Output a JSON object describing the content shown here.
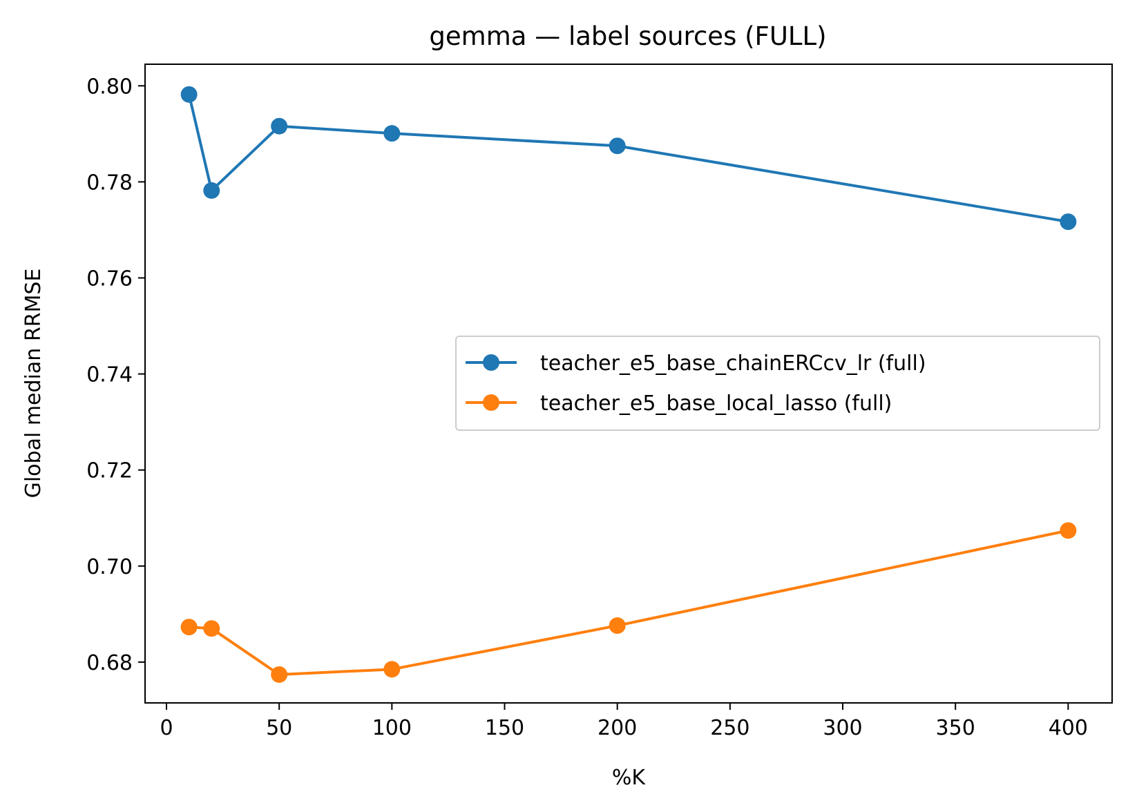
{
  "chart_data": {
    "type": "line",
    "title": "gemma — label sources (FULL)",
    "xlabel": "%K",
    "ylabel": "Global median RRMSE",
    "xlim": [
      -9.5,
      419.5
    ],
    "ylim": [
      0.6715,
      0.8045
    ],
    "xticks": [
      0,
      50,
      100,
      150,
      200,
      250,
      300,
      350,
      400
    ],
    "xtick_labels": [
      "0",
      "50",
      "100",
      "150",
      "200",
      "250",
      "300",
      "350",
      "400"
    ],
    "yticks": [
      0.68,
      0.7,
      0.72,
      0.74,
      0.76,
      0.78,
      0.8
    ],
    "ytick_labels": [
      "0.68",
      "0.70",
      "0.72",
      "0.74",
      "0.76",
      "0.78",
      "0.80"
    ],
    "grid": false,
    "legend_position": "center-right",
    "series": [
      {
        "name": "teacher_e5_base_chainERCcv_lr (full)",
        "color": "#1f77b4",
        "marker": "circle",
        "x": [
          10,
          20,
          50,
          100,
          200,
          400
        ],
        "y": [
          0.7982,
          0.7782,
          0.7916,
          0.7901,
          0.7875,
          0.7717
        ]
      },
      {
        "name": "teacher_e5_base_local_lasso (full)",
        "color": "#ff7f0e",
        "marker": "circle",
        "x": [
          10,
          20,
          50,
          100,
          200,
          400
        ],
        "y": [
          0.6873,
          0.687,
          0.6774,
          0.6785,
          0.6876,
          0.7074
        ]
      }
    ]
  }
}
